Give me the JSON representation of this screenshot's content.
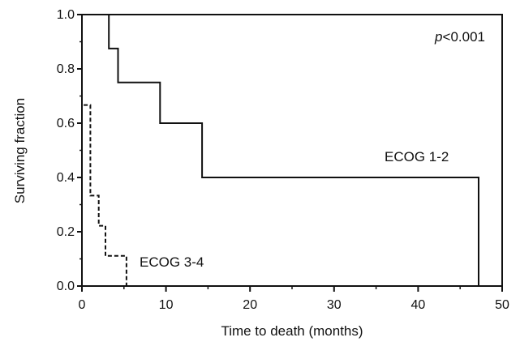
{
  "chart_data": {
    "type": "line",
    "xlabel": "Time to death (months)",
    "ylabel": "Surviving fraction",
    "xlim": [
      0,
      50
    ],
    "ylim": [
      0,
      1.0
    ],
    "x_ticks": [
      0,
      10,
      20,
      30,
      40,
      50
    ],
    "x_tick_labels": [
      "0",
      "10",
      "20",
      "30",
      "40",
      "50"
    ],
    "y_ticks": [
      0,
      0.2,
      0.4,
      0.6,
      0.8,
      1.0
    ],
    "y_tick_labels": [
      "0.0",
      "0.2",
      "0.4",
      "0.6",
      "0.8",
      "1.0"
    ],
    "grid": false,
    "annotation": {
      "italic": "p",
      "rest": "<0.001"
    },
    "series": [
      {
        "name": "ECOG 1-2",
        "style": "solid",
        "color": "#111111",
        "x": [
          0,
          3.2,
          3.2,
          4.3,
          4.3,
          9.3,
          9.3,
          14.3,
          14.3,
          47.2,
          47.2
        ],
        "y": [
          1.0,
          1.0,
          0.875,
          0.875,
          0.75,
          0.75,
          0.6,
          0.6,
          0.4,
          0.4,
          0.0
        ]
      },
      {
        "name": "ECOG 3-4",
        "style": "dashed",
        "color": "#111111",
        "x": [
          0.2,
          1.0,
          1.0,
          2.0,
          2.0,
          2.8,
          2.8,
          3.1,
          3.1,
          5.3,
          5.3
        ],
        "y": [
          0.667,
          0.667,
          0.333,
          0.333,
          0.222,
          0.222,
          0.111,
          0.111,
          0.111,
          0.111,
          0.0
        ]
      }
    ]
  }
}
